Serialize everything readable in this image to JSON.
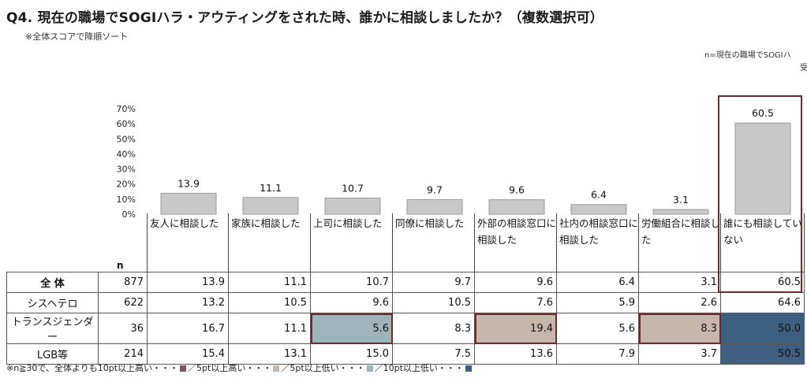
{
  "title": "Q4. 現在の職場でSOGIハラ・アウティングをされた時、誰かに相談しましたか？（複数選択可）",
  "subtitle": "※全体スコアで降順ソート",
  "n_note": "n=現在の職場でSOGIハ",
  "n_note2": "受",
  "n_header": "n",
  "colors": {
    "bar": "#c8c8c8",
    "bar_border": "#9a9a9a",
    "highlight_frame": "#6b2a2a",
    "higher10": "#7a5c52",
    "higher5": "#c9b6aa",
    "lower5": "#9fb4ba",
    "lower10": "#3e5f7f"
  },
  "chart_data": {
    "type": "bar",
    "categories": [
      "友人に相談した",
      "家族に相談した",
      "上司に相談した",
      "同僚に相談した",
      "外部の相談窓口に相談した",
      "社内の相談窓口に相談した",
      "労働組合に相談した",
      "誰にも相談していない"
    ],
    "values": [
      13.9,
      11.1,
      10.7,
      9.7,
      9.6,
      6.4,
      3.1,
      60.5
    ],
    "value_labels": [
      "13.9",
      "11.1",
      "10.7",
      "9.7",
      "9.6",
      "6.4",
      "3.1",
      "60.5"
    ],
    "ylim": [
      0,
      70
    ],
    "yticks": [
      "0%",
      "10%",
      "20%",
      "30%",
      "40%",
      "50%",
      "60%",
      "70%"
    ]
  },
  "table": {
    "rows": [
      {
        "label": "全 体",
        "n": "877",
        "values": [
          "13.9",
          "11.1",
          "10.7",
          "9.7",
          "9.6",
          "6.4",
          "3.1",
          "60.5"
        ]
      },
      {
        "label": "シスヘテロ",
        "n": "622",
        "values": [
          "13.2",
          "10.5",
          "9.6",
          "10.5",
          "7.6",
          "5.9",
          "2.6",
          "64.6"
        ]
      },
      {
        "label": "トランスジェンダー",
        "n": "36",
        "values": [
          "16.7",
          "11.1",
          "5.6",
          "8.3",
          "19.4",
          "5.6",
          "8.3",
          "50.0"
        ]
      },
      {
        "label": "LGB等",
        "n": "214",
        "values": [
          "15.4",
          "13.1",
          "15.0",
          "7.5",
          "13.6",
          "7.9",
          "3.7",
          "50.5"
        ]
      }
    ]
  },
  "footnote": {
    "p1": "※n≧30で、全体よりも10pt以上高い・・・",
    "p2": "／5pt以上高い・・・",
    "p3": "／5pt以上低い・・・",
    "p4": "／10pt以上低い・・・"
  }
}
